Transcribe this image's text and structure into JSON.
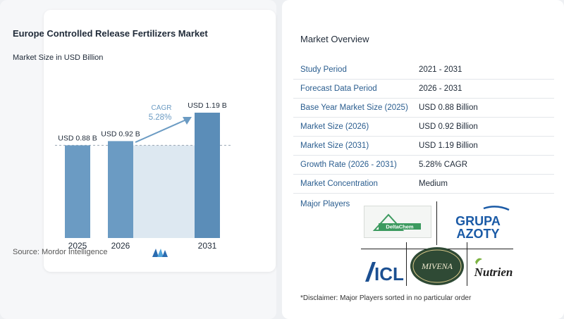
{
  "chart_data": {
    "type": "bar",
    "title": "Europe Controlled Release Fertilizers Market",
    "subtitle": "Market Size in USD Billion",
    "categories": [
      "2025",
      "2026",
      "2031"
    ],
    "values": [
      0.88,
      0.92,
      1.19
    ],
    "data_labels": [
      "USD 0.88 B",
      "USD 0.92 B",
      "USD 1.19 B"
    ],
    "cagr_label": "CAGR",
    "cagr_value": "5.28%",
    "reference_line": 0.88,
    "colors": {
      "bar": "#6b9bc3",
      "bar_highlight": "#5b8db8",
      "band": "#dde8f1",
      "arrow": "#6b9bc3",
      "cagr": "#6b9bc3"
    },
    "source": "Source: Mordor Intelligence"
  },
  "overview": {
    "title": "Market Overview",
    "rows": [
      {
        "key": "Study Period",
        "value": "2021 - 2031"
      },
      {
        "key": "Forecast Data Period",
        "value": "2026 - 2031"
      },
      {
        "key": "Base Year Market Size (2025)",
        "value": "USD 0.88 Billion"
      },
      {
        "key": "Market Size (2026)",
        "value": "USD 0.92 Billion"
      },
      {
        "key": "Market Size (2031)",
        "value": "USD 1.19 Billion"
      },
      {
        "key": "Growth Rate (2026 - 2031)",
        "value": "5.28% CAGR"
      },
      {
        "key": "Market Concentration",
        "value": "Medium"
      }
    ],
    "players_label": "Major Players",
    "players": [
      "DeltaChem",
      "GRUPA AZOTY",
      "ICL",
      "MIVENA",
      "Nutrien"
    ],
    "disclaimer": "*Disclaimer: Major Players sorted in no particular order"
  }
}
